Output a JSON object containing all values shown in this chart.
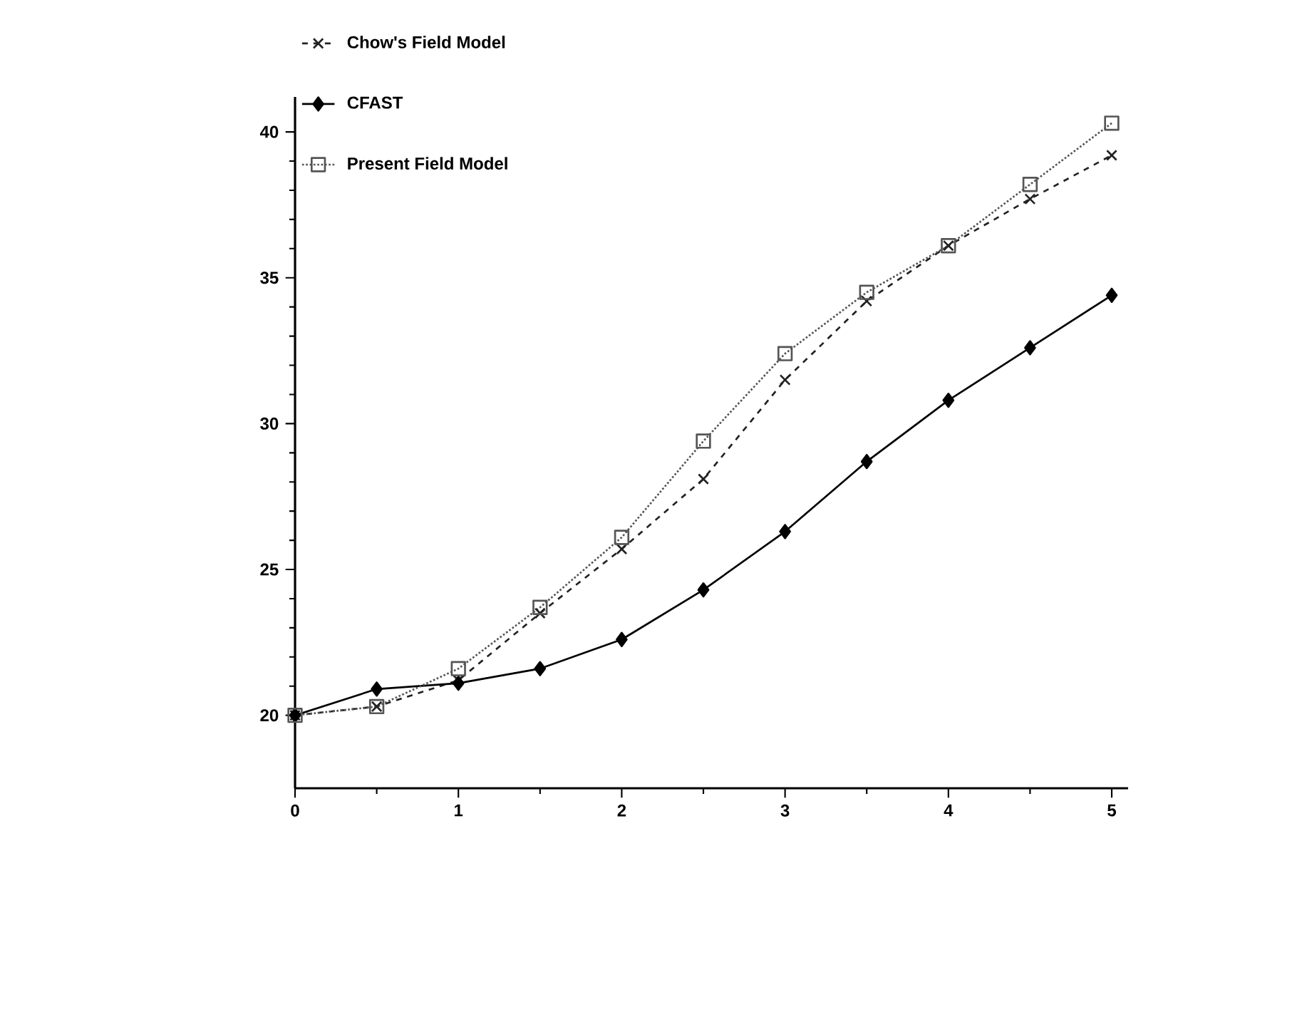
{
  "chart_data": {
    "type": "line",
    "x": [
      0,
      0.5,
      1,
      1.5,
      2,
      2.5,
      3,
      3.5,
      4,
      4.5,
      5
    ],
    "series": [
      {
        "name": "Chow's Field Model",
        "color": "#222222",
        "marker": "cross",
        "line_style": "dashed",
        "values": [
          20,
          20.3,
          21.2,
          23.5,
          25.7,
          28.1,
          31.5,
          34.2,
          36.1,
          37.7,
          39.2
        ]
      },
      {
        "name": "CFAST",
        "color": "#000000",
        "marker": "diamond",
        "line_style": "solid",
        "values": [
          20,
          20.9,
          21.1,
          21.6,
          22.6,
          24.3,
          26.3,
          28.7,
          30.8,
          32.6,
          34.4
        ]
      },
      {
        "name": "Present Field Model",
        "color": "#555555",
        "marker": "square",
        "line_style": "dotted",
        "values": [
          20,
          20.3,
          21.6,
          23.7,
          26.1,
          29.4,
          32.4,
          34.5,
          36.1,
          38.2,
          40.3
        ]
      }
    ],
    "xlim": [
      0,
      5.1
    ],
    "ylim": [
      17.5,
      41.2
    ],
    "xticks": [
      0,
      1,
      2,
      3,
      4,
      5
    ],
    "yticks": [
      20,
      25,
      30,
      35,
      40
    ],
    "grid": false,
    "legend": "top left"
  }
}
